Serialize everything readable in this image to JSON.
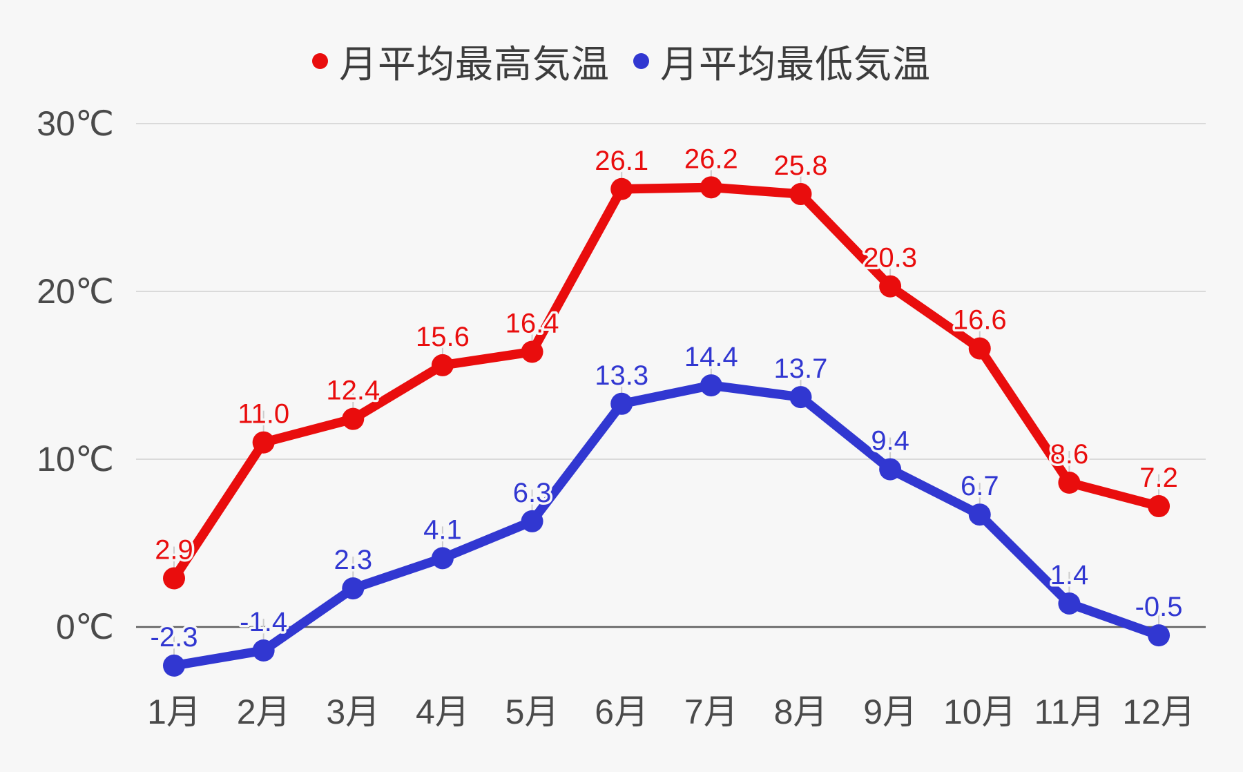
{
  "chart_data": {
    "type": "line",
    "title": "",
    "categories": [
      "1月",
      "2月",
      "3月",
      "4月",
      "5月",
      "6月",
      "7月",
      "8月",
      "9月",
      "10月",
      "11月",
      "12月"
    ],
    "series": [
      {
        "name": "月平均最高気温",
        "color": "#e90d0d",
        "values": [
          2.9,
          11.0,
          12.4,
          15.6,
          16.4,
          26.1,
          26.2,
          25.8,
          20.3,
          16.6,
          8.6,
          7.2
        ],
        "labels": [
          "2.9",
          "11.0",
          "12.4",
          "15.6",
          "16.4",
          "26.1",
          "26.2",
          "25.8",
          "20.3",
          "16.6",
          "8.6",
          "7.2"
        ]
      },
      {
        "name": "月平均最低気温",
        "color": "#3137d1",
        "values": [
          -2.3,
          -1.4,
          2.3,
          4.1,
          6.3,
          13.3,
          14.4,
          13.7,
          9.4,
          6.7,
          1.4,
          -0.5
        ],
        "labels": [
          "-2.3",
          "-1.4",
          "2.3",
          "4.1",
          "6.3",
          "13.3",
          "14.4",
          "13.7",
          "9.4",
          "6.7",
          "1.4",
          "-0.5"
        ]
      }
    ],
    "y_axis": {
      "unit": "℃",
      "ticks": [
        {
          "value": 0,
          "label": "0℃"
        },
        {
          "value": 10,
          "label": "10℃"
        },
        {
          "value": 20,
          "label": "20℃"
        },
        {
          "value": 30,
          "label": "30℃"
        }
      ],
      "range": [
        -5,
        32
      ]
    },
    "xlabel": "",
    "ylabel": "",
    "grid": true,
    "legend_position": "top",
    "colors": {
      "background": "#f7f7f7",
      "gridline": "#dadada",
      "zero_line": "#5f5f5f",
      "axis_text": "#4a4a4a",
      "leader_line": "#cccccc",
      "label_halo": "#f7f7f7"
    }
  }
}
